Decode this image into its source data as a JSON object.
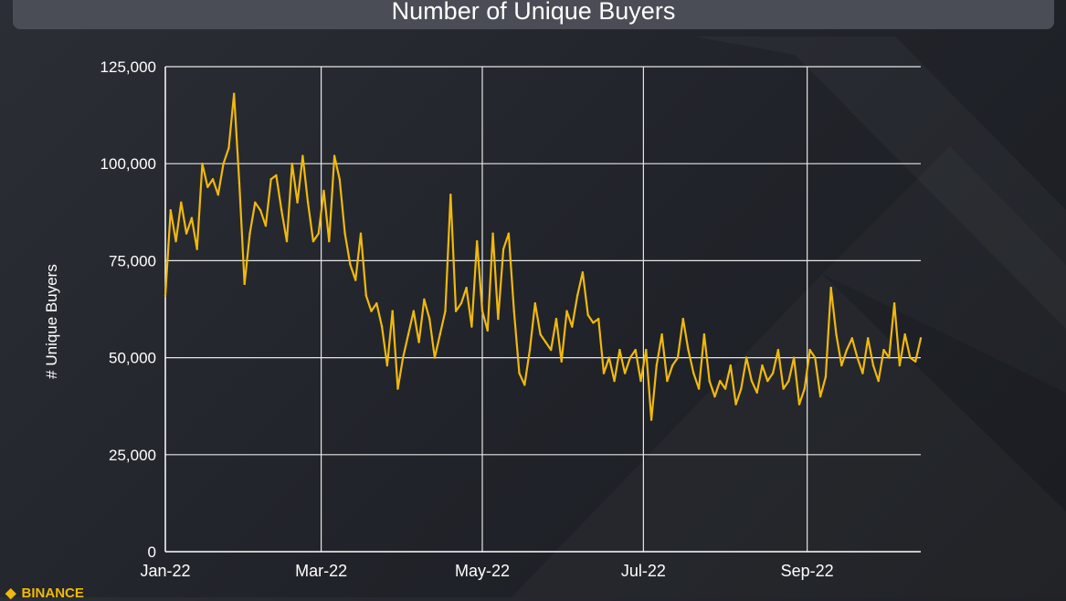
{
  "title": "Number of Unique Buyers",
  "brand": "BINANCE",
  "footer_note": "",
  "colors": {
    "line": "#f0b90b",
    "grid": "#e6e6e6",
    "axis": "#ffffff",
    "text": "#ffffff",
    "background": "#202329"
  },
  "chart_data": {
    "type": "line",
    "title": "Number of Unique Buyers",
    "xlabel": "",
    "ylabel": "# Unique Buyers",
    "ylim": [
      0,
      125000
    ],
    "yticks": [
      0,
      25000,
      50000,
      75000,
      100000,
      125000
    ],
    "ytick_labels": [
      "0",
      "25,000",
      "50,000",
      "75,000",
      "100,000",
      "125,000"
    ],
    "xlim": [
      "2022-01-01",
      "2022-10-14"
    ],
    "xticks": [
      "2022-01-01",
      "2022-03-01",
      "2022-05-01",
      "2022-07-01",
      "2022-09-01"
    ],
    "xtick_labels": [
      "Jan-22",
      "Mar-22",
      "May-22",
      "Jul-22",
      "Sep-22"
    ],
    "grid": true,
    "series": [
      {
        "name": "",
        "x": [
          "2022-01-01",
          "2022-01-03",
          "2022-01-05",
          "2022-01-07",
          "2022-01-09",
          "2022-01-11",
          "2022-01-13",
          "2022-01-15",
          "2022-01-17",
          "2022-01-19",
          "2022-01-21",
          "2022-01-23",
          "2022-01-25",
          "2022-01-27",
          "2022-01-29",
          "2022-01-31",
          "2022-02-02",
          "2022-02-04",
          "2022-02-06",
          "2022-02-08",
          "2022-02-10",
          "2022-02-12",
          "2022-02-14",
          "2022-02-16",
          "2022-02-18",
          "2022-02-20",
          "2022-02-22",
          "2022-02-24",
          "2022-02-26",
          "2022-02-28",
          "2022-03-02",
          "2022-03-04",
          "2022-03-06",
          "2022-03-08",
          "2022-03-10",
          "2022-03-12",
          "2022-03-14",
          "2022-03-16",
          "2022-03-18",
          "2022-03-20",
          "2022-03-22",
          "2022-03-24",
          "2022-03-26",
          "2022-03-28",
          "2022-03-30",
          "2022-04-01",
          "2022-04-03",
          "2022-04-05",
          "2022-04-07",
          "2022-04-09",
          "2022-04-11",
          "2022-04-13",
          "2022-04-15",
          "2022-04-17",
          "2022-04-19",
          "2022-04-21",
          "2022-04-23",
          "2022-04-25",
          "2022-04-27",
          "2022-04-29",
          "2022-05-01",
          "2022-05-03",
          "2022-05-05",
          "2022-05-07",
          "2022-05-09",
          "2022-05-11",
          "2022-05-13",
          "2022-05-15",
          "2022-05-17",
          "2022-05-19",
          "2022-05-21",
          "2022-05-23",
          "2022-05-25",
          "2022-05-27",
          "2022-05-29",
          "2022-05-31",
          "2022-06-02",
          "2022-06-04",
          "2022-06-06",
          "2022-06-08",
          "2022-06-10",
          "2022-06-12",
          "2022-06-14",
          "2022-06-16",
          "2022-06-18",
          "2022-06-20",
          "2022-06-22",
          "2022-06-24",
          "2022-06-26",
          "2022-06-28",
          "2022-06-30",
          "2022-07-02",
          "2022-07-04",
          "2022-07-06",
          "2022-07-08",
          "2022-07-10",
          "2022-07-12",
          "2022-07-14",
          "2022-07-16",
          "2022-07-18",
          "2022-07-20",
          "2022-07-22",
          "2022-07-24",
          "2022-07-26",
          "2022-07-28",
          "2022-07-30",
          "2022-08-01",
          "2022-08-03",
          "2022-08-05",
          "2022-08-07",
          "2022-08-09",
          "2022-08-11",
          "2022-08-13",
          "2022-08-15",
          "2022-08-17",
          "2022-08-19",
          "2022-08-21",
          "2022-08-23",
          "2022-08-25",
          "2022-08-27",
          "2022-08-29",
          "2022-08-31",
          "2022-09-02",
          "2022-09-04",
          "2022-09-06",
          "2022-09-08",
          "2022-09-10",
          "2022-09-12",
          "2022-09-14",
          "2022-09-16",
          "2022-09-18",
          "2022-09-20",
          "2022-09-22",
          "2022-09-24",
          "2022-09-26",
          "2022-09-28",
          "2022-09-30",
          "2022-10-02",
          "2022-10-04",
          "2022-10-06",
          "2022-10-08",
          "2022-10-10",
          "2022-10-12",
          "2022-10-14"
        ],
        "values": [
          66000,
          88000,
          80000,
          90000,
          82000,
          86000,
          78000,
          100000,
          94000,
          96000,
          92000,
          100000,
          104000,
          118000,
          95000,
          69000,
          82000,
          90000,
          88000,
          84000,
          96000,
          97000,
          88000,
          80000,
          100000,
          90000,
          102000,
          90000,
          80000,
          82000,
          93000,
          80000,
          102000,
          96000,
          82000,
          74000,
          70000,
          82000,
          66000,
          62000,
          64000,
          58000,
          48000,
          62000,
          42000,
          50000,
          56000,
          62000,
          54000,
          65000,
          60000,
          50000,
          56000,
          62000,
          92000,
          62000,
          64000,
          68000,
          58000,
          80000,
          62000,
          57000,
          82000,
          60000,
          78000,
          82000,
          62000,
          46000,
          43000,
          52000,
          64000,
          56000,
          54000,
          52000,
          60000,
          49000,
          62000,
          58000,
          66000,
          72000,
          61000,
          59000,
          60000,
          46000,
          50000,
          44000,
          52000,
          46000,
          50000,
          52000,
          44000,
          52000,
          34000,
          48000,
          56000,
          44000,
          48000,
          50000,
          60000,
          52000,
          46000,
          42000,
          56000,
          44000,
          40000,
          44000,
          42000,
          48000,
          38000,
          42000,
          50000,
          44000,
          41000,
          48000,
          44000,
          46000,
          52000,
          42000,
          44000,
          50000,
          38000,
          42000,
          52000,
          50000,
          40000,
          45000,
          68000,
          56000,
          48000,
          52000,
          55000,
          50000,
          46000,
          55000,
          48000,
          44000,
          52000,
          50000,
          64000,
          48000,
          56000,
          50000,
          49000,
          55000
        ]
      }
    ]
  }
}
